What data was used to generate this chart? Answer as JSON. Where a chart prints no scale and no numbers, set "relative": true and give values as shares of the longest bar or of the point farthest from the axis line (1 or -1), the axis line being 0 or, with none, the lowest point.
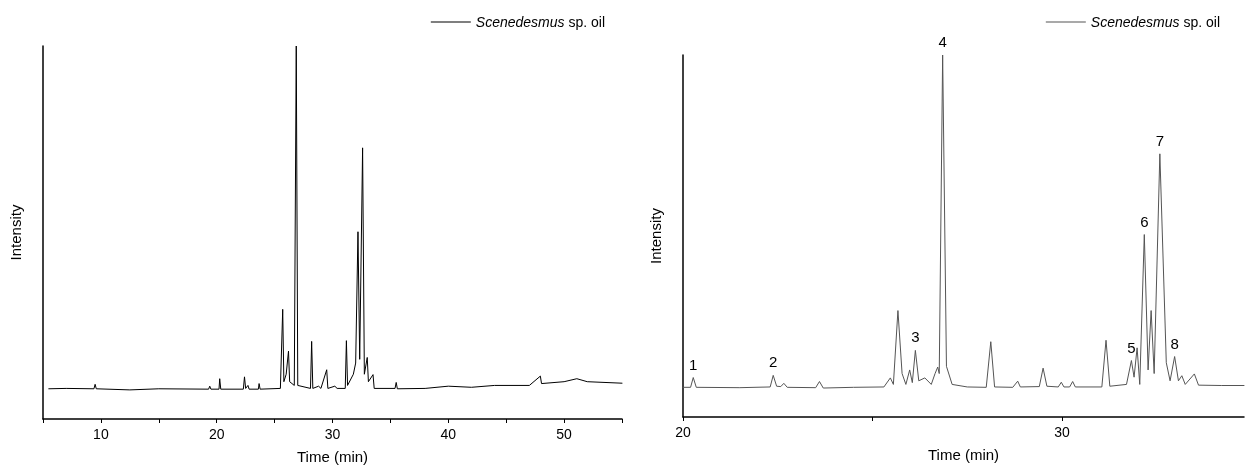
{
  "chart_data": [
    {
      "type": "line",
      "relative": true,
      "xlabel": "Time (min)",
      "ylabel": "Intensity",
      "legend": "top right",
      "xlim": [
        5,
        55
      ],
      "xticks": [
        {
          "value": 5,
          "label": null
        },
        10,
        {
          "value": 15,
          "label": null
        },
        20,
        {
          "value": 25,
          "label": null
        },
        30,
        {
          "value": 35,
          "label": null
        },
        40,
        {
          "value": 45,
          "label": null
        },
        50,
        {
          "value": 55,
          "label": null
        }
      ],
      "marker": "none",
      "line_style": "solid",
      "series": [
        {
          "name": "Scenedesmus sp. oil",
          "color": "#000000",
          "x": [
            5.5,
            7,
            9.4,
            9.5,
            9.6,
            12.5,
            15,
            19.3,
            19.4,
            19.5,
            20.2,
            20.26,
            20.35,
            22.3,
            22.4,
            22.5,
            22.7,
            22.8,
            23.6,
            23.66,
            23.75,
            25.5,
            25.7,
            25.8,
            26.0,
            26.2,
            26.3,
            26.5,
            26.7,
            26.87,
            27.0,
            28.1,
            28.2,
            28.3,
            28.8,
            29.0,
            29.5,
            29.6,
            30.2,
            30.4,
            31.1,
            31.2,
            31.3,
            31.8,
            32.0,
            32.2,
            32.35,
            32.6,
            32.75,
            33.0,
            33.1,
            33.5,
            33.6,
            35.4,
            35.5,
            35.6,
            38,
            40,
            42,
            44,
            47,
            47.95,
            48.05,
            50,
            51.1,
            52,
            55
          ],
          "values": [
            0.081,
            0.082,
            0.081,
            0.093,
            0.081,
            0.078,
            0.081,
            0.08,
            0.088,
            0.08,
            0.08,
            0.108,
            0.08,
            0.08,
            0.113,
            0.082,
            0.09,
            0.08,
            0.08,
            0.095,
            0.08,
            0.082,
            0.294,
            0.1,
            0.12,
            0.182,
            0.1,
            0.095,
            0.09,
            1.0,
            0.09,
            0.082,
            0.208,
            0.082,
            0.088,
            0.082,
            0.132,
            0.082,
            0.088,
            0.082,
            0.082,
            0.21,
            0.09,
            0.12,
            0.15,
            0.502,
            0.16,
            0.727,
            0.12,
            0.165,
            0.1,
            0.119,
            0.082,
            0.082,
            0.098,
            0.081,
            0.082,
            0.088,
            0.085,
            0.09,
            0.09,
            0.115,
            0.095,
            0.1,
            0.108,
            0.1,
            0.096
          ]
        }
      ]
    },
    {
      "type": "line",
      "relative": true,
      "xlabel": "Time (min)",
      "ylabel": "Intensity",
      "legend": "top right",
      "xlim": [
        20,
        34.8
      ],
      "xticks": [
        20,
        {
          "value": 25,
          "label": null
        },
        30
      ],
      "marker": "none",
      "line_style": "solid",
      "annotations": [
        {
          "text": "1",
          "x": 20.27,
          "y": 0.109
        },
        {
          "text": "2",
          "x": 22.38,
          "y": 0.115
        },
        {
          "text": "3",
          "x": 26.13,
          "y": 0.184
        },
        {
          "text": "4",
          "x": 26.85,
          "y": 1.0
        },
        {
          "text": "5",
          "x": 31.83,
          "y": 0.156
        },
        {
          "text": "6",
          "x": 32.17,
          "y": 0.504
        },
        {
          "text": "7",
          "x": 32.58,
          "y": 0.727
        },
        {
          "text": "8",
          "x": 32.97,
          "y": 0.167
        }
      ],
      "series": [
        {
          "name": "Scenedesmus sp. oil",
          "color": "#555555",
          "x": [
            20.0,
            20.2,
            20.27,
            20.35,
            21.5,
            22.3,
            22.38,
            22.47,
            22.58,
            22.66,
            22.75,
            23.5,
            23.6,
            23.7,
            24.5,
            25.3,
            25.47,
            25.55,
            25.67,
            25.78,
            25.88,
            25.98,
            26.05,
            26.13,
            26.22,
            26.38,
            26.55,
            26.65,
            26.72,
            26.76,
            26.85,
            26.95,
            27.1,
            27.5,
            28.0,
            28.12,
            28.22,
            28.7,
            28.83,
            28.9,
            29.4,
            29.5,
            29.6,
            29.9,
            29.98,
            30.05,
            30.2,
            30.28,
            30.35,
            31.05,
            31.16,
            31.26,
            31.7,
            31.83,
            31.9,
            31.98,
            32.05,
            32.17,
            32.27,
            32.35,
            32.43,
            32.58,
            32.75,
            32.85,
            32.97,
            33.07,
            33.16,
            33.25,
            33.49,
            33.6,
            34.2,
            34.8
          ],
          "values": [
            0.082,
            0.082,
            0.109,
            0.082,
            0.081,
            0.083,
            0.115,
            0.085,
            0.084,
            0.093,
            0.082,
            0.081,
            0.098,
            0.08,
            0.082,
            0.083,
            0.108,
            0.09,
            0.294,
            0.12,
            0.09,
            0.13,
            0.095,
            0.184,
            0.1,
            0.108,
            0.09,
            0.12,
            0.138,
            0.12,
            1.0,
            0.14,
            0.09,
            0.083,
            0.082,
            0.208,
            0.083,
            0.082,
            0.099,
            0.083,
            0.084,
            0.135,
            0.085,
            0.083,
            0.096,
            0.083,
            0.083,
            0.098,
            0.083,
            0.083,
            0.212,
            0.085,
            0.09,
            0.156,
            0.11,
            0.191,
            0.09,
            0.504,
            0.13,
            0.294,
            0.12,
            0.727,
            0.15,
            0.1,
            0.167,
            0.1,
            0.114,
            0.09,
            0.119,
            0.088,
            0.087,
            0.087
          ]
        }
      ]
    }
  ]
}
